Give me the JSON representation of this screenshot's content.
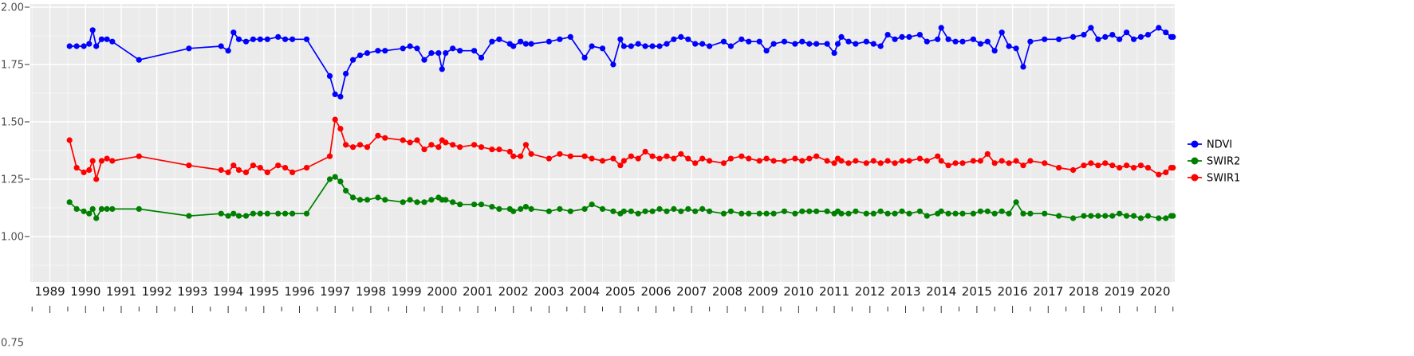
{
  "chart_data": {
    "type": "line",
    "title": "",
    "xlabel": "",
    "ylabel": "",
    "grid": true,
    "legend_position": "right",
    "panel_color": "#EBEBEB",
    "grid_color": "#FFFFFF",
    "xlim": [
      1988.45,
      2020.55
    ],
    "ylim": [
      0.75,
      2.0
    ],
    "x_ticks": [
      1989,
      1990,
      1991,
      1992,
      1993,
      1994,
      1995,
      1996,
      1997,
      1998,
      1999,
      2000,
      2001,
      2002,
      2003,
      2004,
      2005,
      2006,
      2007,
      2008,
      2009,
      2010,
      2011,
      2012,
      2013,
      2014,
      2015,
      2016,
      2017,
      2018,
      2019,
      2020
    ],
    "y_ticks": [
      {
        "label": "2.00",
        "value": 2.0
      },
      {
        "label": "1.75",
        "value": 1.75
      },
      {
        "label": "1.50",
        "value": 1.5
      },
      {
        "label": "1.25",
        "value": 1.25
      },
      {
        "label": "1.00",
        "value": 1.0
      },
      {
        "label": "0.75",
        "value": 0.75
      }
    ],
    "x": [
      1989.55,
      1989.75,
      1989.95,
      1990.1,
      1990.2,
      1990.3,
      1990.45,
      1990.6,
      1990.75,
      1991.5,
      1992.9,
      1993.8,
      1994.0,
      1994.15,
      1994.3,
      1994.5,
      1994.7,
      1994.9,
      1995.1,
      1995.4,
      1995.6,
      1995.8,
      1996.2,
      1996.85,
      1997.0,
      1997.15,
      1997.3,
      1997.5,
      1997.7,
      1997.9,
      1998.2,
      1998.4,
      1998.9,
      1999.1,
      1999.3,
      1999.5,
      1999.7,
      1999.9,
      2000.0,
      2000.1,
      2000.3,
      2000.5,
      2000.9,
      2001.1,
      2001.4,
      2001.6,
      2001.9,
      2002.0,
      2002.2,
      2002.35,
      2002.5,
      2003.0,
      2003.3,
      2003.6,
      2004.0,
      2004.2,
      2004.5,
      2004.8,
      2005.0,
      2005.1,
      2005.3,
      2005.5,
      2005.7,
      2005.9,
      2006.1,
      2006.3,
      2006.5,
      2006.7,
      2006.9,
      2007.1,
      2007.3,
      2007.5,
      2007.9,
      2008.1,
      2008.4,
      2008.6,
      2008.9,
      2009.1,
      2009.3,
      2009.6,
      2009.9,
      2010.1,
      2010.3,
      2010.5,
      2010.8,
      2011.0,
      2011.1,
      2011.2,
      2011.4,
      2011.6,
      2011.9,
      2012.1,
      2012.3,
      2012.5,
      2012.7,
      2012.9,
      2013.1,
      2013.4,
      2013.6,
      2013.9,
      2014.0,
      2014.2,
      2014.4,
      2014.6,
      2014.9,
      2015.1,
      2015.3,
      2015.5,
      2015.7,
      2015.9,
      2016.1,
      2016.3,
      2016.5,
      2016.9,
      2017.3,
      2017.7,
      2018.0,
      2018.2,
      2018.4,
      2018.6,
      2018.8,
      2019.0,
      2019.2,
      2019.4,
      2019.6,
      2019.8,
      2020.1,
      2020.3,
      2020.45,
      2020.5
    ],
    "series": [
      {
        "name": "NDVI",
        "color": "#0000FF",
        "values": [
          1.83,
          1.83,
          1.83,
          1.84,
          1.9,
          1.83,
          1.86,
          1.86,
          1.85,
          1.77,
          1.82,
          1.83,
          1.81,
          1.89,
          1.86,
          1.85,
          1.86,
          1.86,
          1.86,
          1.87,
          1.86,
          1.86,
          1.86,
          1.7,
          1.62,
          1.61,
          1.71,
          1.77,
          1.79,
          1.8,
          1.81,
          1.81,
          1.82,
          1.83,
          1.82,
          1.77,
          1.8,
          1.8,
          1.73,
          1.8,
          1.82,
          1.81,
          1.81,
          1.78,
          1.85,
          1.86,
          1.84,
          1.83,
          1.85,
          1.84,
          1.84,
          1.85,
          1.86,
          1.87,
          1.78,
          1.83,
          1.82,
          1.75,
          1.86,
          1.83,
          1.83,
          1.84,
          1.83,
          1.83,
          1.83,
          1.84,
          1.86,
          1.87,
          1.86,
          1.84,
          1.84,
          1.83,
          1.85,
          1.83,
          1.86,
          1.85,
          1.85,
          1.81,
          1.84,
          1.85,
          1.84,
          1.85,
          1.84,
          1.84,
          1.84,
          1.8,
          1.84,
          1.87,
          1.85,
          1.84,
          1.85,
          1.84,
          1.83,
          1.88,
          1.86,
          1.87,
          1.87,
          1.88,
          1.85,
          1.86,
          1.91,
          1.86,
          1.85,
          1.85,
          1.86,
          1.84,
          1.85,
          1.81,
          1.89,
          1.83,
          1.82,
          1.74,
          1.85,
          1.86,
          1.86,
          1.87,
          1.88,
          1.91,
          1.86,
          1.87,
          1.88,
          1.86,
          1.89,
          1.86,
          1.87,
          1.88,
          1.91,
          1.89,
          1.87,
          1.87
        ]
      },
      {
        "name": "SWIR2",
        "color": "#008000",
        "values": [
          1.15,
          1.12,
          1.11,
          1.1,
          1.12,
          1.08,
          1.12,
          1.12,
          1.12,
          1.12,
          1.09,
          1.1,
          1.09,
          1.1,
          1.09,
          1.09,
          1.1,
          1.1,
          1.1,
          1.1,
          1.1,
          1.1,
          1.1,
          1.25,
          1.26,
          1.24,
          1.2,
          1.17,
          1.16,
          1.16,
          1.17,
          1.16,
          1.15,
          1.16,
          1.15,
          1.15,
          1.16,
          1.17,
          1.16,
          1.16,
          1.15,
          1.14,
          1.14,
          1.14,
          1.13,
          1.12,
          1.12,
          1.11,
          1.12,
          1.13,
          1.12,
          1.11,
          1.12,
          1.11,
          1.12,
          1.14,
          1.12,
          1.11,
          1.1,
          1.11,
          1.11,
          1.1,
          1.11,
          1.11,
          1.12,
          1.11,
          1.12,
          1.11,
          1.12,
          1.11,
          1.12,
          1.11,
          1.1,
          1.11,
          1.1,
          1.1,
          1.1,
          1.1,
          1.1,
          1.11,
          1.1,
          1.11,
          1.11,
          1.11,
          1.11,
          1.1,
          1.11,
          1.1,
          1.1,
          1.11,
          1.1,
          1.1,
          1.11,
          1.1,
          1.1,
          1.11,
          1.1,
          1.11,
          1.09,
          1.1,
          1.11,
          1.1,
          1.1,
          1.1,
          1.1,
          1.11,
          1.11,
          1.1,
          1.11,
          1.1,
          1.15,
          1.1,
          1.1,
          1.1,
          1.09,
          1.08,
          1.09,
          1.09,
          1.09,
          1.09,
          1.09,
          1.1,
          1.09,
          1.09,
          1.08,
          1.09,
          1.08,
          1.08,
          1.09,
          1.09
        ]
      },
      {
        "name": "SWIR1",
        "color": "#FF0000",
        "values": [
          1.42,
          1.3,
          1.28,
          1.29,
          1.33,
          1.25,
          1.33,
          1.34,
          1.33,
          1.35,
          1.31,
          1.29,
          1.28,
          1.31,
          1.29,
          1.28,
          1.31,
          1.3,
          1.28,
          1.31,
          1.3,
          1.28,
          1.3,
          1.35,
          1.51,
          1.47,
          1.4,
          1.39,
          1.4,
          1.39,
          1.44,
          1.43,
          1.42,
          1.41,
          1.42,
          1.38,
          1.4,
          1.39,
          1.42,
          1.41,
          1.4,
          1.39,
          1.4,
          1.39,
          1.38,
          1.38,
          1.37,
          1.35,
          1.35,
          1.4,
          1.36,
          1.34,
          1.36,
          1.35,
          1.35,
          1.34,
          1.33,
          1.34,
          1.31,
          1.33,
          1.35,
          1.34,
          1.37,
          1.35,
          1.34,
          1.35,
          1.34,
          1.36,
          1.34,
          1.32,
          1.34,
          1.33,
          1.32,
          1.34,
          1.35,
          1.34,
          1.33,
          1.34,
          1.33,
          1.33,
          1.34,
          1.33,
          1.34,
          1.35,
          1.33,
          1.32,
          1.34,
          1.33,
          1.32,
          1.33,
          1.32,
          1.33,
          1.32,
          1.33,
          1.32,
          1.33,
          1.33,
          1.34,
          1.33,
          1.35,
          1.33,
          1.31,
          1.32,
          1.32,
          1.33,
          1.33,
          1.36,
          1.32,
          1.33,
          1.32,
          1.33,
          1.31,
          1.33,
          1.32,
          1.3,
          1.29,
          1.31,
          1.32,
          1.31,
          1.32,
          1.31,
          1.3,
          1.31,
          1.3,
          1.31,
          1.3,
          1.27,
          1.28,
          1.3,
          1.3
        ]
      }
    ],
    "legend_labels": [
      "NDVI",
      "SWIR2",
      "SWIR1"
    ]
  }
}
